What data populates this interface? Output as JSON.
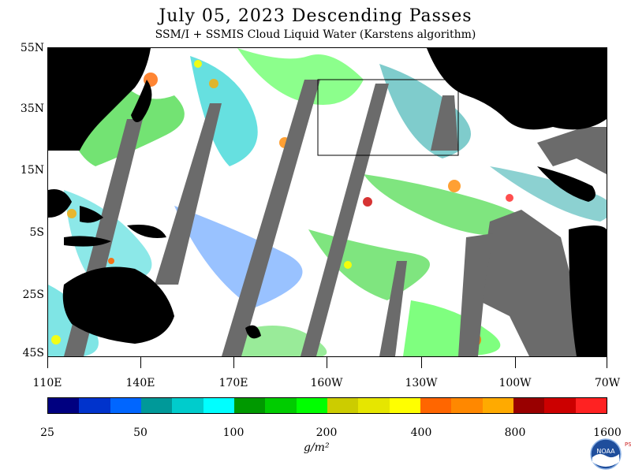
{
  "title": "July 05, 2023  Descending Passes",
  "subtitle": "SSM/I + SSMIS Cloud Liquid Water (Karstens algorithm)",
  "latitude_labels": [
    "55N",
    "35N",
    "15N",
    "5S",
    "25S",
    "45S"
  ],
  "longitude_labels": [
    "110E",
    "140E",
    "170E",
    "160W",
    "130W",
    "100W",
    "70W"
  ],
  "colorbar": {
    "tick_labels": [
      "25",
      "50",
      "100",
      "200",
      "400",
      "800",
      "1600"
    ],
    "units": "g/m²",
    "colors": [
      "#000080",
      "#0033cc",
      "#0066ff",
      "#009999",
      "#00cccc",
      "#00ffff",
      "#009900",
      "#00cc00",
      "#00ff00",
      "#cccc00",
      "#e6e600",
      "#ffff00",
      "#ff6600",
      "#ff8800",
      "#ffaa00",
      "#990000",
      "#cc0000",
      "#ff2222"
    ]
  },
  "map_colors": {
    "land": "#000000",
    "no_data_swath": "#6b6b6b",
    "clear": "#ffffff"
  },
  "logo": {
    "name": "noaa-logo",
    "text": "NOAA",
    "side_text": "PSL"
  }
}
